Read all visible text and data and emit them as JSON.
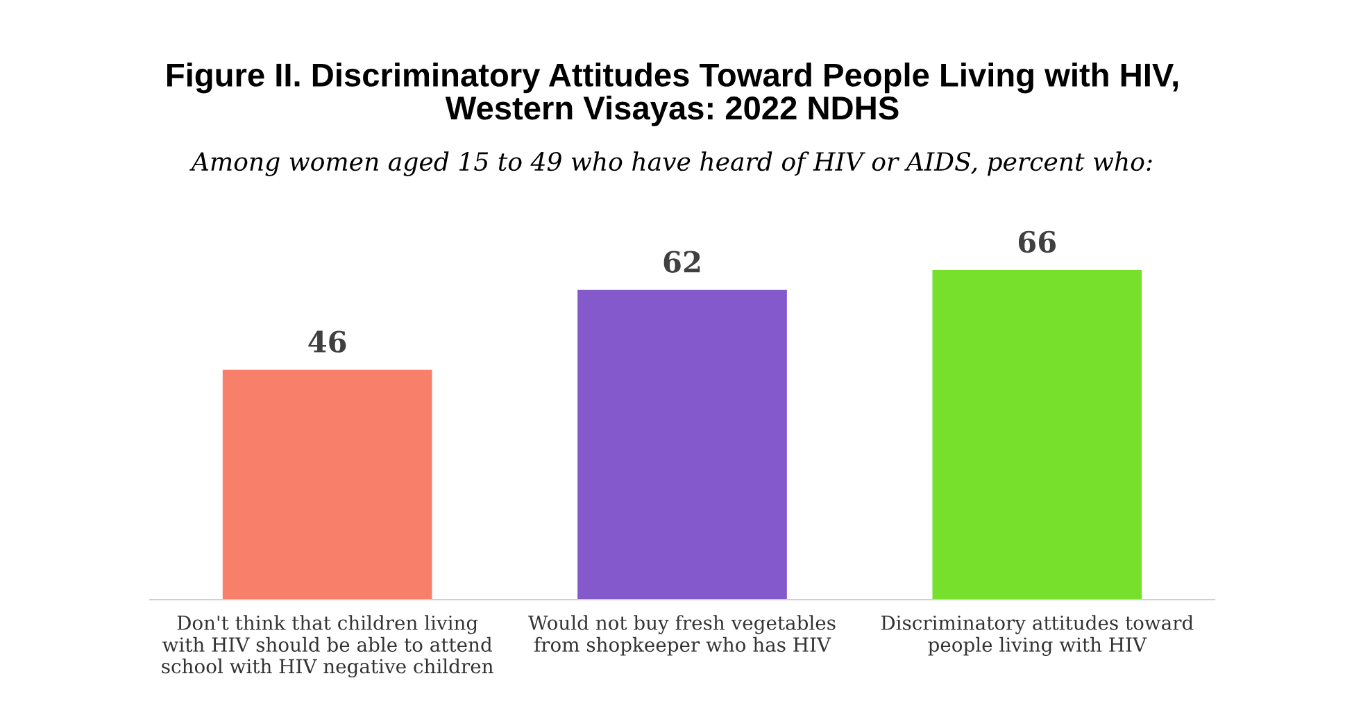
{
  "chart_data": {
    "type": "bar",
    "title": "Figure II. Discriminatory Attitudes Toward People Living with HIV,\nWestern Visayas: 2022 NDHS",
    "subtitle": "Among women aged 15 to 49 who have heard of HIV or AIDS, percent who:",
    "categories": [
      "Don't think that children living\nwith HIV should be able to attend\nschool with HIV negative children",
      "Would not buy fresh vegetables\nfrom shopkeeper who has HIV",
      "Discriminatory attitudes toward\npeople living with HIV"
    ],
    "values": [
      46,
      62,
      66
    ],
    "colors": [
      "#f8806a",
      "#8459cc",
      "#77e02d"
    ],
    "data_labels": true,
    "grid": false,
    "legend": false
  }
}
